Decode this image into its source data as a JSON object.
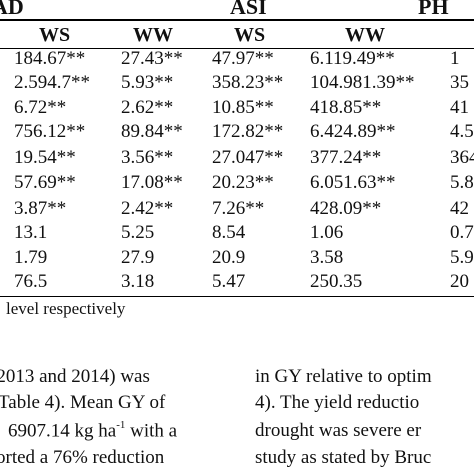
{
  "table": {
    "group_headers": [
      "AD",
      "ASI",
      "PH"
    ],
    "sub_headers": [
      "WS",
      "WW",
      "WS",
      "WW"
    ],
    "rows": [
      [
        "184.67**",
        "27.43**",
        "47.97**",
        "6.119.49**",
        "1"
      ],
      [
        "2.594.7**",
        "5.93**",
        "358.23**",
        "104.981.39**",
        "35"
      ],
      [
        "6.72**",
        "2.62**",
        "10.85**",
        "418.85**",
        "41"
      ],
      [
        "756.12**",
        "89.84**",
        "172.82**",
        "6.424.89**",
        "4.5"
      ],
      [
        "19.54**",
        "3.56**",
        "27.047**",
        "377.24**",
        "364"
      ],
      [
        "57.69**",
        "17.08**",
        "20.23**",
        "6.051.63**",
        "5.8"
      ],
      [
        "3.87**",
        "2.42**",
        "7.26**",
        "428.09**",
        "42"
      ],
      [
        "13.1",
        "5.25",
        "8.54",
        "1.06",
        "0.7"
      ],
      [
        "1.79",
        "27.9",
        "20.9",
        "3.58",
        "5.9"
      ],
      [
        "76.5",
        "3.18",
        "5.47",
        "250.35",
        "20"
      ]
    ],
    "footnote": "level respectively"
  },
  "paragraphs": {
    "left": [
      "(2013 and 2014) was",
      "Table 4). Mean GY of",
      "6907.14 kg ha",
      "orted a 76% reduction"
    ],
    "left_sup": "-1",
    "left_after_sup": " with a",
    "right": [
      "in GY relative to optim",
      "4). The yield reductio",
      "drought was severe er",
      "study as stated by Bruc"
    ]
  }
}
